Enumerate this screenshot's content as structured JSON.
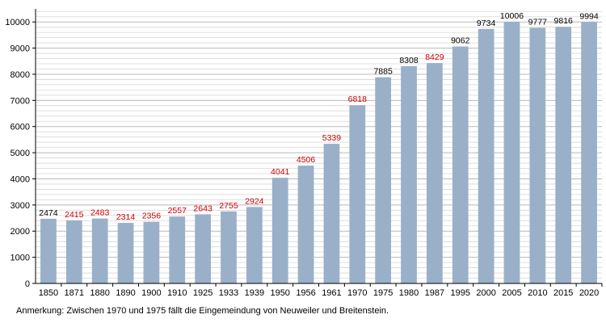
{
  "chart_data": {
    "type": "bar",
    "categories": [
      "1850",
      "1871",
      "1880",
      "1890",
      "1900",
      "1910",
      "1925",
      "1933",
      "1939",
      "1950",
      "1956",
      "1961",
      "1970",
      "1975",
      "1980",
      "1987",
      "1995",
      "2000",
      "2005",
      "2010",
      "2015",
      "2020"
    ],
    "values": [
      2474,
      2415,
      2483,
      2314,
      2356,
      2557,
      2643,
      2755,
      2924,
      4041,
      4506,
      5339,
      6818,
      7885,
      8308,
      8429,
      9062,
      9734,
      10006,
      9777,
      9816,
      9994
    ],
    "label_colors": [
      "#000000",
      "#cc0000",
      "#cc0000",
      "#cc0000",
      "#cc0000",
      "#cc0000",
      "#cc0000",
      "#cc0000",
      "#cc0000",
      "#cc0000",
      "#cc0000",
      "#cc0000",
      "#cc0000",
      "#000000",
      "#000000",
      "#cc0000",
      "#000000",
      "#000000",
      "#000000",
      "#000000",
      "#000000",
      "#000000"
    ],
    "ylim": [
      0,
      10500
    ],
    "yticks": [
      0,
      1000,
      2000,
      3000,
      4000,
      5000,
      6000,
      7000,
      8000,
      9000,
      10000
    ],
    "grid": true,
    "bar_color": "#9ab0c8",
    "title": "",
    "xlabel": "",
    "ylabel": ""
  },
  "note": "Anmerkung: Zwischen 1970 und 1975 fällt die Eingemeindung von Neuweiler und Breitenstein."
}
